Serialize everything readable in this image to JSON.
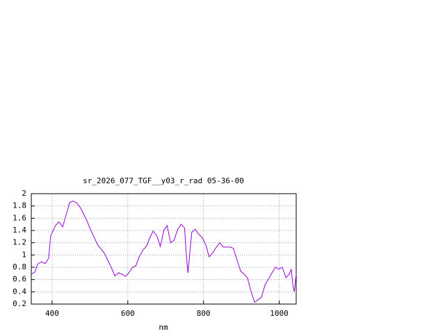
{
  "chart_data": {
    "type": "line",
    "title": "sr_2026_077_TGF__y03_r_rad 05-36-00",
    "x_label": "nm",
    "x": [
      345,
      354,
      363,
      372,
      382,
      391,
      396,
      409,
      418,
      428,
      437,
      446,
      455,
      465,
      474,
      483,
      492,
      501,
      520,
      538,
      556,
      566,
      575,
      584,
      594,
      603,
      612,
      621,
      630,
      640,
      649,
      658,
      667,
      677,
      686,
      695,
      704,
      713,
      722,
      732,
      741,
      750,
      755,
      759,
      763,
      769,
      778,
      787,
      796,
      806,
      815,
      824,
      833,
      843,
      852,
      870,
      879,
      889,
      898,
      907,
      916,
      926,
      935,
      944,
      953,
      963,
      972,
      981,
      990,
      999,
      1008,
      1018,
      1027,
      1032,
      1036,
      1040,
      1045
    ],
    "series": [
      {
        "name": "sr_2026_077_TGF__y03_r_rad",
        "color": "#9400d3",
        "values": [
          0.69,
          0.72,
          0.86,
          0.89,
          0.86,
          0.95,
          1.31,
          1.48,
          1.54,
          1.46,
          1.65,
          1.85,
          1.88,
          1.85,
          1.78,
          1.67,
          1.56,
          1.42,
          1.17,
          1.03,
          0.8,
          0.66,
          0.71,
          0.69,
          0.65,
          0.71,
          0.8,
          0.82,
          0.97,
          1.08,
          1.14,
          1.28,
          1.39,
          1.31,
          1.14,
          1.4,
          1.48,
          1.2,
          1.24,
          1.42,
          1.5,
          1.44,
          0.97,
          0.71,
          0.97,
          1.37,
          1.42,
          1.34,
          1.29,
          1.17,
          0.97,
          1.03,
          1.12,
          1.2,
          1.13,
          1.13,
          1.11,
          0.91,
          0.74,
          0.69,
          0.63,
          0.4,
          0.23,
          0.27,
          0.31,
          0.52,
          0.61,
          0.71,
          0.8,
          0.77,
          0.8,
          0.63,
          0.69,
          0.77,
          0.52,
          0.4,
          0.69
        ]
      }
    ],
    "xlim": [
      345,
      1045
    ],
    "xticks": [
      400,
      600,
      800,
      1000
    ],
    "ylim": [
      0.2,
      2
    ],
    "yticks": [
      0.2,
      0.4,
      0.6,
      0.8,
      1,
      1.2,
      1.4,
      1.6,
      1.8,
      2
    ],
    "grid": true
  }
}
